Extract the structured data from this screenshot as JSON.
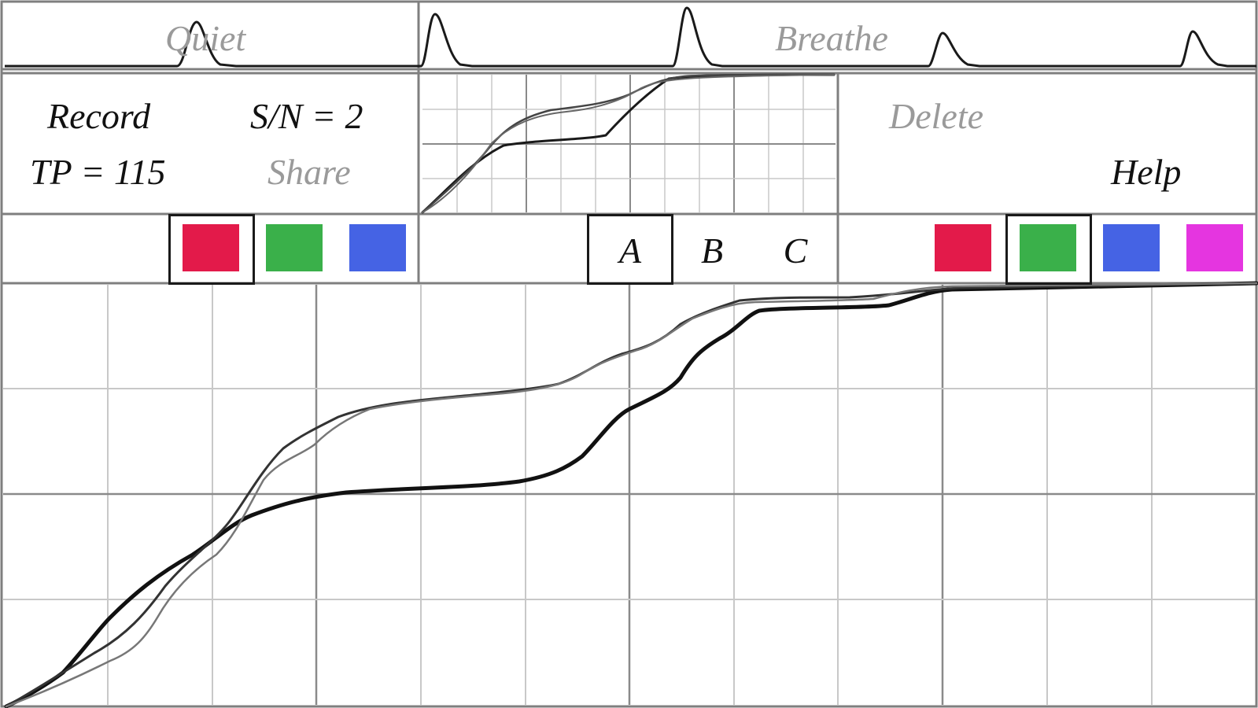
{
  "top_strip": {
    "quiet_label": "Quiet",
    "breathe_label": "Breathe"
  },
  "controls": {
    "record_label": "Record",
    "sn_label": "S/N = 2",
    "tp_label": "TP = 115",
    "share_label": "Share",
    "delete_label": "Delete",
    "help_label": "Help"
  },
  "left_palette": {
    "selected": "red",
    "swatches": [
      {
        "name": "red",
        "color": "#e31a4a"
      },
      {
        "name": "green",
        "color": "#3ab04a"
      },
      {
        "name": "blue",
        "color": "#4563e4"
      }
    ]
  },
  "tabs": {
    "selected": "A",
    "items": [
      "A",
      "B",
      "C"
    ]
  },
  "right_palette": {
    "selected": "green",
    "swatches": [
      {
        "name": "red",
        "color": "#e31a4a"
      },
      {
        "name": "green",
        "color": "#3ab04a"
      },
      {
        "name": "blue",
        "color": "#4563e4"
      },
      {
        "name": "magenta",
        "color": "#e535e0"
      }
    ]
  },
  "colors": {
    "frame": "#7f7f7f",
    "grid_minor": "#c8c8c8",
    "grid_major": "#8a8a8a",
    "curve": "#1a1a1a",
    "muted_text": "#9a9a9a"
  }
}
